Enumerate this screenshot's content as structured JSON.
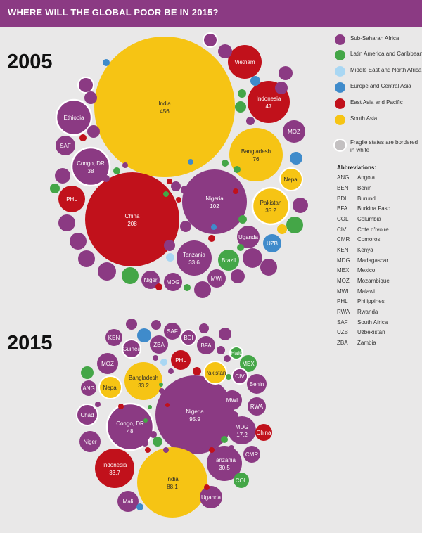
{
  "header": {
    "title": "WHERE WILL THE GLOBAL POOR BE IN 2015?"
  },
  "years": {
    "y2005": "2005",
    "y2015": "2015"
  },
  "colors": {
    "header_bg": "#8b3a83",
    "sub_saharan_africa": "#8b3a83",
    "latin_america": "#44a647",
    "middle_east": "#a9d7f3",
    "europe_central_asia": "#3f8bcb",
    "east_asia_pacific": "#c1111b",
    "south_asia": "#f6c414",
    "fragile_border": "#ffffff"
  },
  "legend": {
    "items": [
      {
        "label": "Sub-Saharan Africa",
        "color": "#8b3a83"
      },
      {
        "label": "Latin America and Caribbean",
        "color": "#44a647"
      },
      {
        "label": "Middle East and North Africa",
        "color": "#a9d7f3"
      },
      {
        "label": "Europe and Central Asia",
        "color": "#3f8bcb"
      },
      {
        "label": "East Asia and Pacific",
        "color": "#c1111b"
      },
      {
        "label": "South Asia",
        "color": "#f6c414"
      }
    ],
    "fragile_note": "Fragile states are bordered in white"
  },
  "abbreviations": {
    "title": "Abbreviations:",
    "items": [
      {
        "code": "ANG",
        "name": "Angola"
      },
      {
        "code": "BEN",
        "name": "Benin"
      },
      {
        "code": "BDI",
        "name": "Burundi"
      },
      {
        "code": "BFA",
        "name": "Burkina Faso"
      },
      {
        "code": "COL",
        "name": "Columbia"
      },
      {
        "code": "CIV",
        "name": "Cote d'Ivoire"
      },
      {
        "code": "CMR",
        "name": "Comoros"
      },
      {
        "code": "KEN",
        "name": "Kenya"
      },
      {
        "code": "MDG",
        "name": "Madagascar"
      },
      {
        "code": "MEX",
        "name": "Mexico"
      },
      {
        "code": "MOZ",
        "name": "Mozambique"
      },
      {
        "code": "MWI",
        "name": "Malawi"
      },
      {
        "code": "PHL",
        "name": "Philippines"
      },
      {
        "code": "RWA",
        "name": "Rwanda"
      },
      {
        "code": "SAF",
        "name": "South Africa"
      },
      {
        "code": "UZB",
        "name": "Uzbekistan"
      },
      {
        "code": "ZBA",
        "name": "Zambia"
      }
    ]
  },
  "chart_data": [
    {
      "type": "bubble",
      "title": "2005",
      "unit": "millions of poor people (labelled values)",
      "bubbles": [
        {
          "label": "India",
          "value": 456,
          "region": "south_asia",
          "fragile": false
        },
        {
          "label": "China",
          "value": 208,
          "region": "east_asia_pacific",
          "fragile": false
        },
        {
          "label": "Nigeria",
          "value": 102,
          "region": "sub_saharan_africa",
          "fragile": false
        },
        {
          "label": "Bangladesh",
          "value": 76,
          "region": "south_asia",
          "fragile": false
        },
        {
          "label": "Indonesia",
          "value": 47,
          "region": "east_asia_pacific",
          "fragile": false
        },
        {
          "label": "Congo, DR",
          "value": 38,
          "region": "sub_saharan_africa",
          "fragile": true
        },
        {
          "label": "Pakistan",
          "value": 35.2,
          "region": "south_asia",
          "fragile": true
        },
        {
          "label": "Tanzania",
          "value": 33.6,
          "region": "sub_saharan_africa",
          "fragile": false
        },
        {
          "label": "Ethiopia",
          "value": null,
          "region": "sub_saharan_africa",
          "fragile": true
        },
        {
          "label": "Vietnam",
          "value": null,
          "region": "east_asia_pacific",
          "fragile": false
        },
        {
          "label": "MOZ",
          "value": null,
          "region": "sub_saharan_africa",
          "fragile": false
        },
        {
          "label": "SAF",
          "value": null,
          "region": "sub_saharan_africa",
          "fragile": false
        },
        {
          "label": "Nepal",
          "value": null,
          "region": "south_asia",
          "fragile": true
        },
        {
          "label": "PHL",
          "value": null,
          "region": "east_asia_pacific",
          "fragile": false
        },
        {
          "label": "Uganda",
          "value": null,
          "region": "sub_saharan_africa",
          "fragile": false
        },
        {
          "label": "UZB",
          "value": null,
          "region": "europe_central_asia",
          "fragile": false
        },
        {
          "label": "Brazil",
          "value": null,
          "region": "latin_america",
          "fragile": false
        },
        {
          "label": "MWI",
          "value": null,
          "region": "sub_saharan_africa",
          "fragile": false
        },
        {
          "label": "Niger",
          "value": null,
          "region": "sub_saharan_africa",
          "fragile": false
        },
        {
          "label": "MDG",
          "value": null,
          "region": "sub_saharan_africa",
          "fragile": false
        }
      ]
    },
    {
      "type": "bubble",
      "title": "2015",
      "unit": "millions of poor people (labelled values)",
      "bubbles": [
        {
          "label": "Nigeria",
          "value": 95.9,
          "region": "sub_saharan_africa",
          "fragile": false
        },
        {
          "label": "India",
          "value": 88.1,
          "region": "south_asia",
          "fragile": false
        },
        {
          "label": "Congo, DR",
          "value": 48,
          "region": "sub_saharan_africa",
          "fragile": true
        },
        {
          "label": "Indonesia",
          "value": 33.7,
          "region": "east_asia_pacific",
          "fragile": false
        },
        {
          "label": "Bangladesh",
          "value": 33.2,
          "region": "south_asia",
          "fragile": false
        },
        {
          "label": "Tanzania",
          "value": 30.5,
          "region": "sub_saharan_africa",
          "fragile": false
        },
        {
          "label": "MDG",
          "value": 17.2,
          "region": "sub_saharan_africa",
          "fragile": false
        },
        {
          "label": "KEN",
          "value": null,
          "region": "sub_saharan_africa",
          "fragile": false
        },
        {
          "label": "ZBA",
          "value": null,
          "region": "sub_saharan_africa",
          "fragile": false
        },
        {
          "label": "SAF",
          "value": null,
          "region": "sub_saharan_africa",
          "fragile": false
        },
        {
          "label": "BDI",
          "value": null,
          "region": "sub_saharan_africa",
          "fragile": true
        },
        {
          "label": "Guinea",
          "value": null,
          "region": "sub_saharan_africa",
          "fragile": true
        },
        {
          "label": "BFA",
          "value": null,
          "region": "sub_saharan_africa",
          "fragile": false
        },
        {
          "label": "Haiti",
          "value": null,
          "region": "latin_america",
          "fragile": true
        },
        {
          "label": "MEX",
          "value": null,
          "region": "latin_america",
          "fragile": false
        },
        {
          "label": "PHL",
          "value": null,
          "region": "east_asia_pacific",
          "fragile": false
        },
        {
          "label": "MOZ",
          "value": null,
          "region": "sub_saharan_africa",
          "fragile": false
        },
        {
          "label": "Pakistan",
          "value": null,
          "region": "south_asia",
          "fragile": true
        },
        {
          "label": "CIV",
          "value": null,
          "region": "sub_saharan_africa",
          "fragile": true
        },
        {
          "label": "Benin",
          "value": null,
          "region": "sub_saharan_africa",
          "fragile": false
        },
        {
          "label": "ANG",
          "value": null,
          "region": "sub_saharan_africa",
          "fragile": false
        },
        {
          "label": "Nepal",
          "value": null,
          "region": "south_asia",
          "fragile": true
        },
        {
          "label": "MWI",
          "value": null,
          "region": "sub_saharan_africa",
          "fragile": false
        },
        {
          "label": "Chad",
          "value": null,
          "region": "sub_saharan_africa",
          "fragile": true
        },
        {
          "label": "RWA",
          "value": null,
          "region": "sub_saharan_africa",
          "fragile": false
        },
        {
          "label": "China",
          "value": null,
          "region": "east_asia_pacific",
          "fragile": false
        },
        {
          "label": "Niger",
          "value": null,
          "region": "sub_saharan_africa",
          "fragile": false
        },
        {
          "label": "CMR",
          "value": null,
          "region": "sub_saharan_africa",
          "fragile": false
        },
        {
          "label": "COL",
          "value": null,
          "region": "latin_america",
          "fragile": false
        },
        {
          "label": "Mali",
          "value": null,
          "region": "sub_saharan_africa",
          "fragile": false
        },
        {
          "label": "Uganda",
          "value": null,
          "region": "sub_saharan_africa",
          "fragile": false
        }
      ]
    }
  ]
}
